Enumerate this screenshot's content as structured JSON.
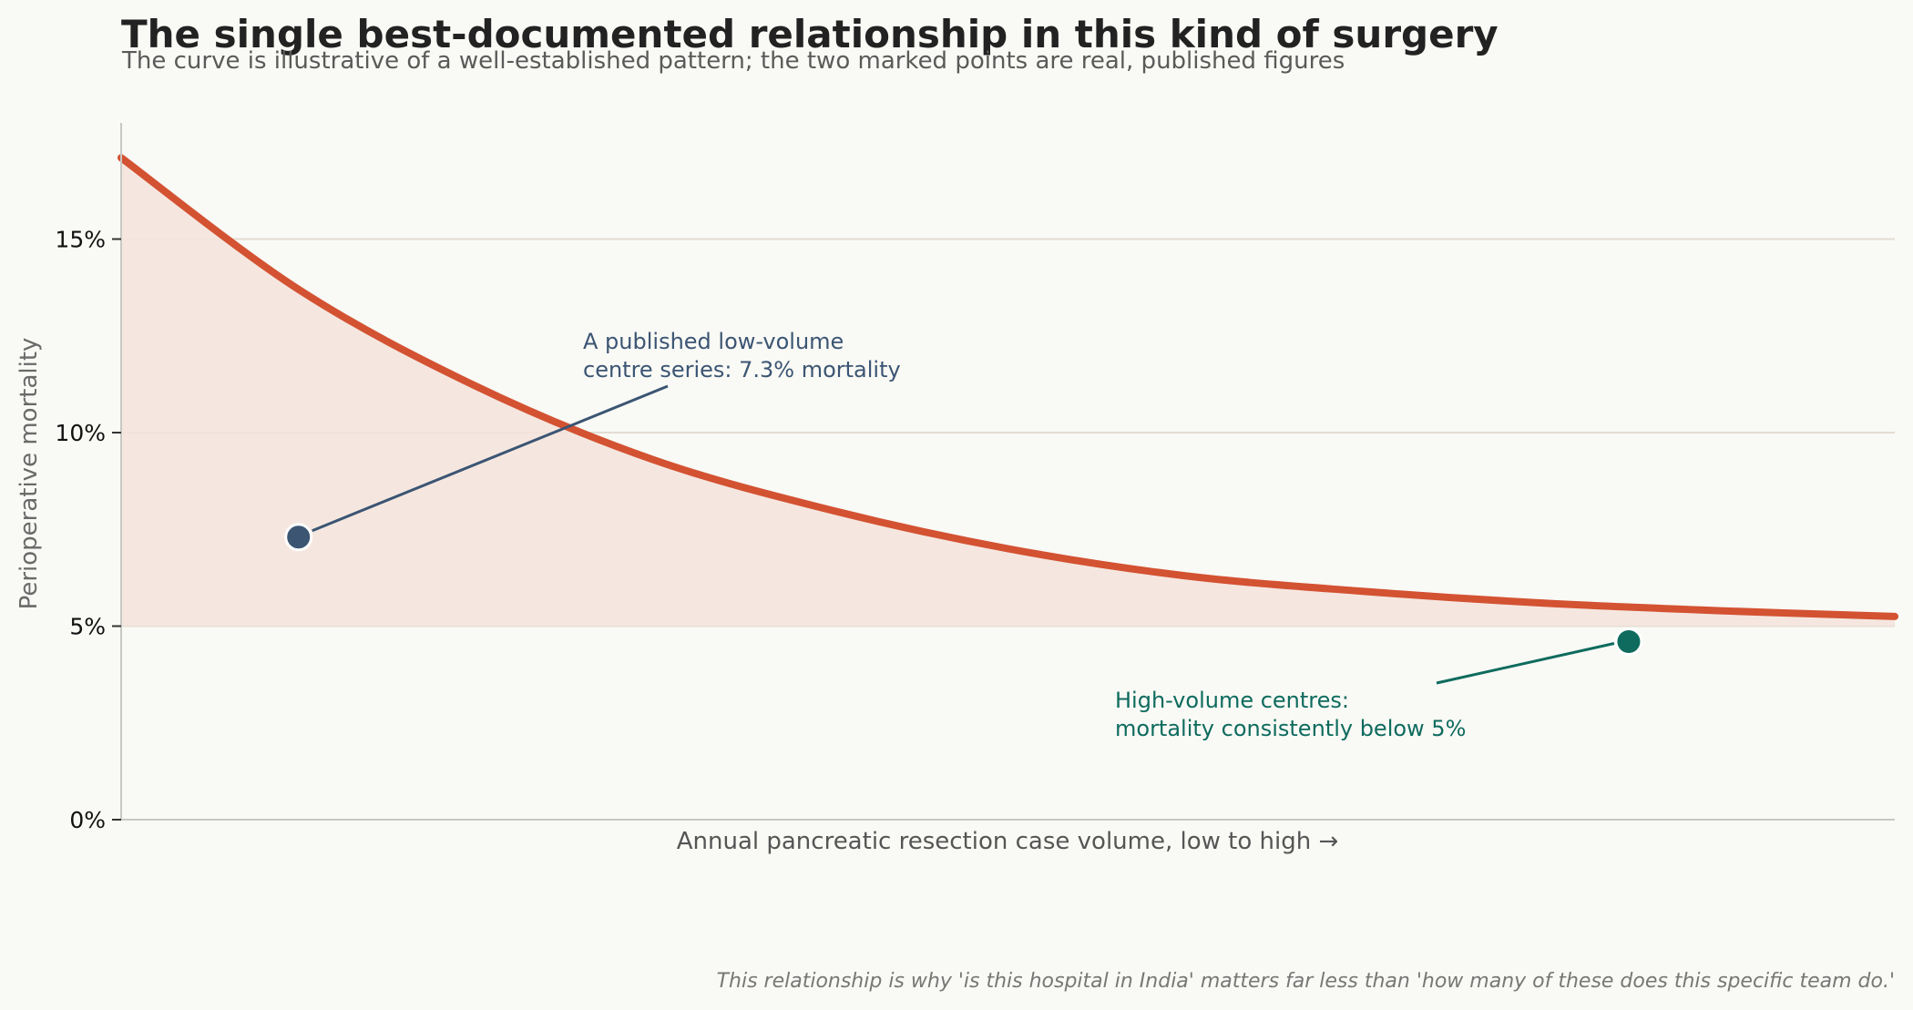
{
  "chart_data": {
    "type": "line",
    "title": "The single best-documented relationship in this kind of surgery",
    "subtitle": "The curve is illustrative of a well-established pattern; the two marked points are real, published figures",
    "xlabel": "Annual pancreatic resection case volume, low to high  →",
    "ylabel": "Perioperative mortality",
    "ylim": [
      0,
      18
    ],
    "yticks": [
      {
        "value": 0,
        "label": "0%"
      },
      {
        "value": 5,
        "label": "5%"
      },
      {
        "value": 10,
        "label": "10%"
      },
      {
        "value": 15,
        "label": "15%"
      }
    ],
    "grid": "horizontal",
    "xlim": [
      0,
      1
    ],
    "curve": {
      "x": [
        0,
        0.1,
        0.2,
        0.3,
        0.4,
        0.5,
        0.6,
        0.7,
        0.8,
        0.9,
        1.0
      ],
      "y": [
        17.1,
        13.7,
        11.2,
        9.3,
        8.0,
        7.0,
        6.3,
        5.9,
        5.6,
        5.4,
        5.25
      ],
      "color": "#d35232",
      "fill_color": "#f5e4dc"
    },
    "points": [
      {
        "x": 0.1,
        "y": 7.3,
        "color": "#3b5573",
        "label": [
          "A published low-volume",
          "centre series: 7.3% mortality"
        ]
      },
      {
        "x": 0.85,
        "y": 4.6,
        "color": "#0e6b5e",
        "label": [
          "High-volume centres:",
          "mortality consistently below 5%"
        ]
      }
    ],
    "footnote": "This relationship is why 'is this hospital in India' matters far less than 'how many of these does this specific team do.'"
  }
}
